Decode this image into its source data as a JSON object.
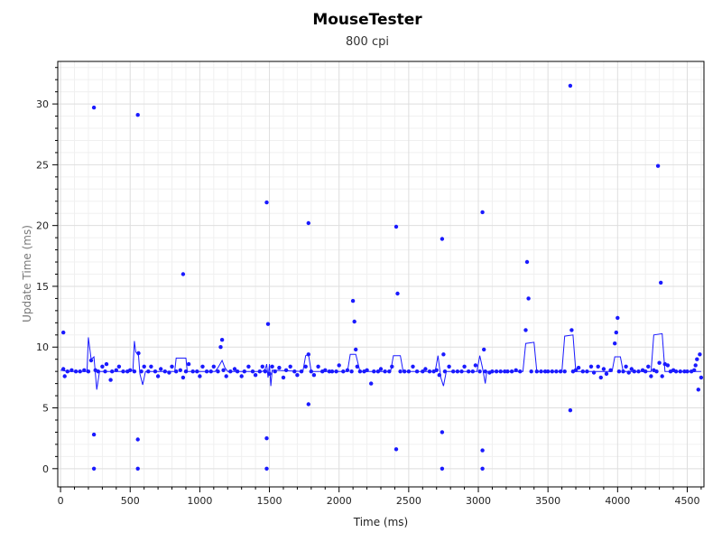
{
  "chart_data": {
    "type": "scatter",
    "title": "MouseTester",
    "subtitle": "800 cpi",
    "xlabel": "Time (ms)",
    "ylabel": "Update Time (ms)",
    "xlim": [
      -20,
      4620
    ],
    "ylim": [
      -1.5,
      33.5
    ],
    "x_ticks": [
      0,
      500,
      1000,
      1500,
      2000,
      2500,
      3000,
      3500,
      4000,
      4500
    ],
    "y_ticks": [
      0,
      5,
      10,
      15,
      20,
      25,
      30
    ],
    "grid": true,
    "series": [
      {
        "kind": "points",
        "color": "#1a1aff",
        "points": [
          [
            20,
            11.2
          ],
          [
            240,
            29.7
          ],
          [
            240,
            2.8
          ],
          [
            240,
            0
          ],
          [
            555,
            29.1
          ],
          [
            555,
            2.4
          ],
          [
            555,
            0
          ],
          [
            880,
            16.0
          ],
          [
            1160,
            10.6
          ],
          [
            1150,
            10.0
          ],
          [
            1480,
            21.9
          ],
          [
            1490,
            11.9
          ],
          [
            1480,
            2.5
          ],
          [
            1480,
            0
          ],
          [
            1780,
            20.2
          ],
          [
            1780,
            9.4
          ],
          [
            1780,
            5.3
          ],
          [
            2100,
            13.8
          ],
          [
            2110,
            12.1
          ],
          [
            2120,
            9.8
          ],
          [
            2410,
            19.9
          ],
          [
            2420,
            14.4
          ],
          [
            2410,
            1.6
          ],
          [
            2740,
            18.9
          ],
          [
            2750,
            9.4
          ],
          [
            2740,
            3.0
          ],
          [
            2740,
            0
          ],
          [
            3030,
            21.1
          ],
          [
            3040,
            9.8
          ],
          [
            3030,
            1.5
          ],
          [
            3030,
            0
          ],
          [
            3350,
            17.0
          ],
          [
            3360,
            14.0
          ],
          [
            3340,
            11.4
          ],
          [
            3660,
            31.5
          ],
          [
            3670,
            11.4
          ],
          [
            3660,
            4.8
          ],
          [
            3990,
            11.2
          ],
          [
            4000,
            12.4
          ],
          [
            3980,
            10.3
          ],
          [
            4290,
            24.9
          ],
          [
            4310,
            15.3
          ],
          [
            4300,
            8.7
          ],
          [
            20,
            8.2
          ],
          [
            30,
            7.6
          ],
          [
            50,
            8.0
          ],
          [
            80,
            8.1
          ],
          [
            110,
            8.0
          ],
          [
            140,
            8.0
          ],
          [
            170,
            8.1
          ],
          [
            200,
            8.0
          ],
          [
            220,
            8.9
          ],
          [
            250,
            8.1
          ],
          [
            270,
            8.0
          ],
          [
            300,
            8.4
          ],
          [
            320,
            8.0
          ],
          [
            330,
            8.6
          ],
          [
            360,
            7.3
          ],
          [
            370,
            8.0
          ],
          [
            400,
            8.1
          ],
          [
            420,
            8.4
          ],
          [
            450,
            8.0
          ],
          [
            480,
            8.0
          ],
          [
            500,
            8.1
          ],
          [
            530,
            8.0
          ],
          [
            560,
            9.5
          ],
          [
            580,
            8.0
          ],
          [
            600,
            8.4
          ],
          [
            630,
            8.0
          ],
          [
            650,
            8.4
          ],
          [
            680,
            8.0
          ],
          [
            700,
            7.6
          ],
          [
            720,
            8.2
          ],
          [
            750,
            8.0
          ],
          [
            780,
            7.9
          ],
          [
            800,
            8.4
          ],
          [
            830,
            8.0
          ],
          [
            860,
            8.1
          ],
          [
            880,
            7.5
          ],
          [
            900,
            8.0
          ],
          [
            920,
            8.6
          ],
          [
            950,
            8.0
          ],
          [
            980,
            8.0
          ],
          [
            1000,
            7.6
          ],
          [
            1020,
            8.4
          ],
          [
            1050,
            8.0
          ],
          [
            1080,
            8.0
          ],
          [
            1100,
            8.4
          ],
          [
            1130,
            8.0
          ],
          [
            1170,
            8.1
          ],
          [
            1190,
            7.6
          ],
          [
            1220,
            8.0
          ],
          [
            1250,
            8.2
          ],
          [
            1270,
            8.0
          ],
          [
            1300,
            7.6
          ],
          [
            1320,
            8.0
          ],
          [
            1350,
            8.4
          ],
          [
            1380,
            8.0
          ],
          [
            1400,
            7.7
          ],
          [
            1430,
            8.0
          ],
          [
            1450,
            8.4
          ],
          [
            1470,
            8.0
          ],
          [
            1500,
            7.8
          ],
          [
            1520,
            8.4
          ],
          [
            1540,
            8.0
          ],
          [
            1570,
            8.3
          ],
          [
            1600,
            7.5
          ],
          [
            1620,
            8.1
          ],
          [
            1650,
            8.4
          ],
          [
            1680,
            8.0
          ],
          [
            1700,
            7.7
          ],
          [
            1730,
            8.0
          ],
          [
            1760,
            8.4
          ],
          [
            1800,
            8.0
          ],
          [
            1820,
            7.7
          ],
          [
            1850,
            8.4
          ],
          [
            1880,
            8.0
          ],
          [
            1900,
            8.1
          ],
          [
            1930,
            8.0
          ],
          [
            1950,
            8.0
          ],
          [
            1980,
            8.0
          ],
          [
            2000,
            8.5
          ],
          [
            2030,
            8.0
          ],
          [
            2060,
            8.1
          ],
          [
            2090,
            8.0
          ],
          [
            2130,
            8.4
          ],
          [
            2150,
            8.0
          ],
          [
            2180,
            8.0
          ],
          [
            2200,
            8.1
          ],
          [
            2230,
            7.0
          ],
          [
            2250,
            8.0
          ],
          [
            2280,
            8.0
          ],
          [
            2300,
            8.2
          ],
          [
            2330,
            8.0
          ],
          [
            2360,
            8.0
          ],
          [
            2380,
            8.4
          ],
          [
            2440,
            8.0
          ],
          [
            2470,
            8.0
          ],
          [
            2500,
            8.0
          ],
          [
            2530,
            8.4
          ],
          [
            2560,
            8.0
          ],
          [
            2600,
            8.0
          ],
          [
            2620,
            8.2
          ],
          [
            2650,
            8.0
          ],
          [
            2680,
            8.0
          ],
          [
            2700,
            8.1
          ],
          [
            2720,
            7.7
          ],
          [
            2760,
            8.0
          ],
          [
            2790,
            8.4
          ],
          [
            2820,
            8.0
          ],
          [
            2850,
            8.0
          ],
          [
            2880,
            8.0
          ],
          [
            2900,
            8.4
          ],
          [
            2930,
            8.0
          ],
          [
            2960,
            8.0
          ],
          [
            2980,
            8.5
          ],
          [
            3010,
            8.0
          ],
          [
            3050,
            8.0
          ],
          [
            3080,
            7.9
          ],
          [
            3100,
            8.0
          ],
          [
            3130,
            8.0
          ],
          [
            3160,
            8.0
          ],
          [
            3190,
            8.0
          ],
          [
            3210,
            8.0
          ],
          [
            3240,
            8.0
          ],
          [
            3270,
            8.1
          ],
          [
            3300,
            8.0
          ],
          [
            3380,
            8.0
          ],
          [
            3420,
            8.0
          ],
          [
            3450,
            8.0
          ],
          [
            3480,
            8.0
          ],
          [
            3500,
            8.0
          ],
          [
            3530,
            8.0
          ],
          [
            3560,
            8.0
          ],
          [
            3590,
            8.0
          ],
          [
            3620,
            8.0
          ],
          [
            3680,
            8.0
          ],
          [
            3700,
            8.1
          ],
          [
            3720,
            8.3
          ],
          [
            3750,
            8.0
          ],
          [
            3780,
            8.0
          ],
          [
            3810,
            8.4
          ],
          [
            3830,
            7.9
          ],
          [
            3860,
            8.4
          ],
          [
            3880,
            7.5
          ],
          [
            3900,
            8.2
          ],
          [
            3920,
            7.8
          ],
          [
            3950,
            8.1
          ],
          [
            4010,
            8.0
          ],
          [
            4040,
            8.0
          ],
          [
            4060,
            8.4
          ],
          [
            4080,
            7.9
          ],
          [
            4100,
            8.2
          ],
          [
            4120,
            8.0
          ],
          [
            4150,
            8.0
          ],
          [
            4180,
            8.1
          ],
          [
            4200,
            8.0
          ],
          [
            4220,
            8.4
          ],
          [
            4240,
            7.6
          ],
          [
            4260,
            8.1
          ],
          [
            4280,
            8.0
          ],
          [
            4320,
            7.6
          ],
          [
            4340,
            8.6
          ],
          [
            4360,
            8.5
          ],
          [
            4380,
            8.0
          ],
          [
            4400,
            8.1
          ],
          [
            4420,
            8.0
          ],
          [
            4450,
            8.0
          ],
          [
            4480,
            8.0
          ],
          [
            4500,
            8.0
          ],
          [
            4530,
            8.0
          ],
          [
            4550,
            8.1
          ],
          [
            4560,
            8.5
          ],
          [
            4570,
            9.0
          ],
          [
            4580,
            6.5
          ],
          [
            4590,
            9.4
          ],
          [
            4600,
            7.5
          ]
        ]
      },
      {
        "kind": "line",
        "color": "#1a1aff",
        "points": [
          [
            0,
            8.1
          ],
          [
            60,
            8.0
          ],
          [
            150,
            8.0
          ],
          [
            190,
            8.0
          ],
          [
            200,
            10.8
          ],
          [
            220,
            9.0
          ],
          [
            240,
            9.2
          ],
          [
            260,
            6.5
          ],
          [
            280,
            8.0
          ],
          [
            500,
            8.0
          ],
          [
            520,
            8.1
          ],
          [
            530,
            10.5
          ],
          [
            540,
            9.6
          ],
          [
            560,
            9.3
          ],
          [
            570,
            7.8
          ],
          [
            590,
            6.9
          ],
          [
            610,
            8.0
          ],
          [
            820,
            8.0
          ],
          [
            830,
            9.1
          ],
          [
            900,
            9.1
          ],
          [
            910,
            8.0
          ],
          [
            1110,
            8.0
          ],
          [
            1130,
            8.3
          ],
          [
            1160,
            8.9
          ],
          [
            1180,
            8.3
          ],
          [
            1200,
            8.0
          ],
          [
            1450,
            8.0
          ],
          [
            1470,
            8.2
          ],
          [
            1480,
            8.6
          ],
          [
            1490,
            7.5
          ],
          [
            1500,
            8.6
          ],
          [
            1510,
            6.8
          ],
          [
            1520,
            8.1
          ],
          [
            1740,
            8.0
          ],
          [
            1760,
            9.3
          ],
          [
            1780,
            9.4
          ],
          [
            1800,
            8.0
          ],
          [
            2060,
            8.0
          ],
          [
            2080,
            9.4
          ],
          [
            2120,
            9.4
          ],
          [
            2150,
            8.0
          ],
          [
            2370,
            8.0
          ],
          [
            2390,
            9.3
          ],
          [
            2440,
            9.3
          ],
          [
            2460,
            8.0
          ],
          [
            2690,
            8.0
          ],
          [
            2710,
            9.3
          ],
          [
            2730,
            7.5
          ],
          [
            2750,
            6.8
          ],
          [
            2770,
            8.0
          ],
          [
            2990,
            8.0
          ],
          [
            3010,
            9.3
          ],
          [
            3030,
            8.3
          ],
          [
            3050,
            7.0
          ],
          [
            3060,
            8.0
          ],
          [
            3320,
            8.0
          ],
          [
            3340,
            10.3
          ],
          [
            3400,
            10.4
          ],
          [
            3420,
            8.0
          ],
          [
            3600,
            8.0
          ],
          [
            3620,
            10.9
          ],
          [
            3680,
            11.0
          ],
          [
            3700,
            8.0
          ],
          [
            3960,
            8.0
          ],
          [
            3980,
            9.2
          ],
          [
            4020,
            9.2
          ],
          [
            4040,
            8.0
          ],
          [
            4240,
            8.0
          ],
          [
            4260,
            11.0
          ],
          [
            4320,
            11.1
          ],
          [
            4340,
            8.0
          ],
          [
            4600,
            8.0
          ]
        ]
      }
    ]
  }
}
